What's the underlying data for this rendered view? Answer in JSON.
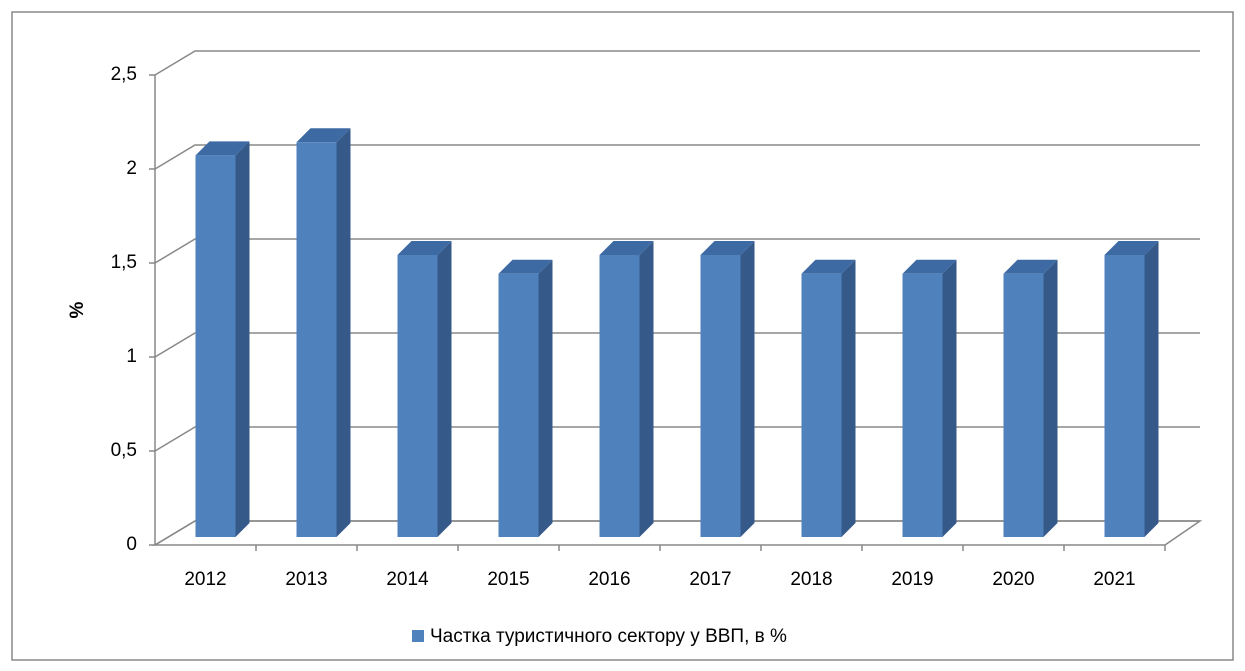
{
  "chart_data": {
    "type": "bar3d",
    "y_label": "%",
    "categories": [
      "2012",
      "2013",
      "2014",
      "2015",
      "2016",
      "2017",
      "2018",
      "2019",
      "2020",
      "2021"
    ],
    "series": [
      {
        "name": "Частка туристичного сектору у ВВП, в %",
        "color": "#4f81bd",
        "values": [
          2.03,
          2.1,
          1.5,
          1.4,
          1.5,
          1.5,
          1.4,
          1.4,
          1.4,
          1.5
        ]
      }
    ],
    "ylim": [
      0,
      2.5
    ],
    "yticks": [
      0,
      {
        "value": 0.5,
        "label": "0,5"
      },
      1,
      {
        "value": 1.5,
        "label": "1,5"
      },
      2,
      {
        "value": 2.5,
        "label": "2,5"
      }
    ],
    "grid": true,
    "legend": "bottom"
  }
}
